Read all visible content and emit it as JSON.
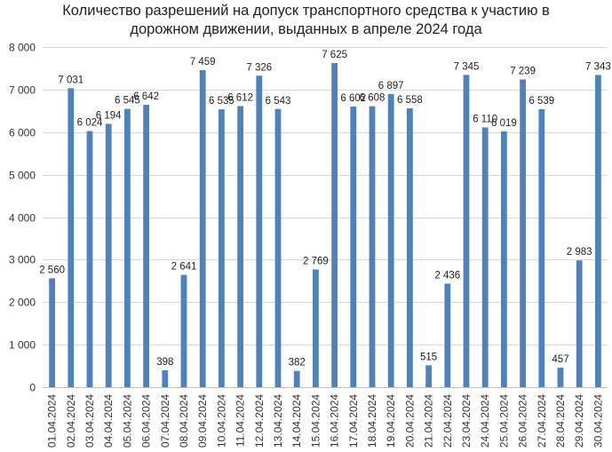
{
  "chart_data": {
    "type": "bar",
    "title_line1": "Количество разрешений на допуск транспортного средства к участию в",
    "title_line2": "дорожном движении, выданных в апреле 2024 года",
    "xlabel": "",
    "ylabel": "",
    "ylim": [
      0,
      8000
    ],
    "yticks": [
      0,
      1000,
      2000,
      3000,
      4000,
      5000,
      6000,
      7000,
      8000
    ],
    "ytick_labels": [
      "0",
      "1 000",
      "2 000",
      "3 000",
      "4 000",
      "5 000",
      "6 000",
      "7 000",
      "8 000"
    ],
    "grid": true,
    "legend": "none",
    "bar_color": "#4f81bd",
    "categories": [
      "01.04.2024",
      "02.04.2024",
      "03.04.2024",
      "04.04.2024",
      "05.04.2024",
      "06.04.2024",
      "07.04.2024",
      "08.04.2024",
      "09.04.2024",
      "10.04.2024",
      "11.04.2024",
      "12.04.2024",
      "13.04.2024",
      "14.04.2024",
      "15.04.2024",
      "16.04.2024",
      "17.04.2024",
      "18.04.2024",
      "19.04.2024",
      "20.04.2024",
      "21.04.2024",
      "22.04.2024",
      "23.04.2024",
      "24.04.2024",
      "25.04.2024",
      "26.04.2024",
      "27.04.2024",
      "28.04.2024",
      "29.04.2024",
      "30.04.2024"
    ],
    "values": [
      2560,
      7031,
      6024,
      6194,
      6545,
      6642,
      398,
      2641,
      7459,
      6535,
      6612,
      7326,
      6543,
      382,
      2769,
      7625,
      6602,
      6608,
      6897,
      6558,
      515,
      2436,
      7345,
      6110,
      6019,
      7239,
      6539,
      457,
      2983,
      7343
    ],
    "value_labels": [
      "2 560",
      "7 031",
      "6 024",
      "6 194",
      "6 545",
      "6 642",
      "398",
      "2 641",
      "7 459",
      "6 535",
      "6 612",
      "7 326",
      "6 543",
      "382",
      "2 769",
      "7 625",
      "6 602",
      "6 608",
      "6 897",
      "6 558",
      "515",
      "2 436",
      "7 345",
      "6 110",
      "6 019",
      "7 239",
      "6 539",
      "457",
      "2 983",
      "7 343"
    ]
  }
}
